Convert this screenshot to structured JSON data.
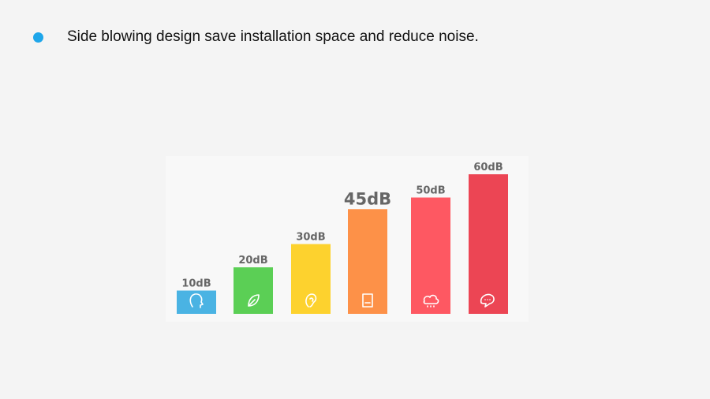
{
  "bullet": {
    "text": "Side blowing design save installation space and reduce noise.",
    "color": "#1ea6ea"
  },
  "chart_data": {
    "type": "bar",
    "categories": [
      "10dB",
      "20dB",
      "30dB",
      "45dB",
      "50dB",
      "60dB"
    ],
    "values": [
      10,
      20,
      30,
      45,
      50,
      60
    ],
    "highlight": "45dB",
    "colors": [
      "#4ab3e3",
      "#5bcf55",
      "#fdd22e",
      "#fd9148",
      "#fe5862",
      "#ec4554"
    ],
    "icons": [
      "head-icon",
      "leaf-icon",
      "ear-icon",
      "book-icon",
      "cloud-rain-icon",
      "chat-icon"
    ],
    "ylim": [
      0,
      60
    ]
  }
}
